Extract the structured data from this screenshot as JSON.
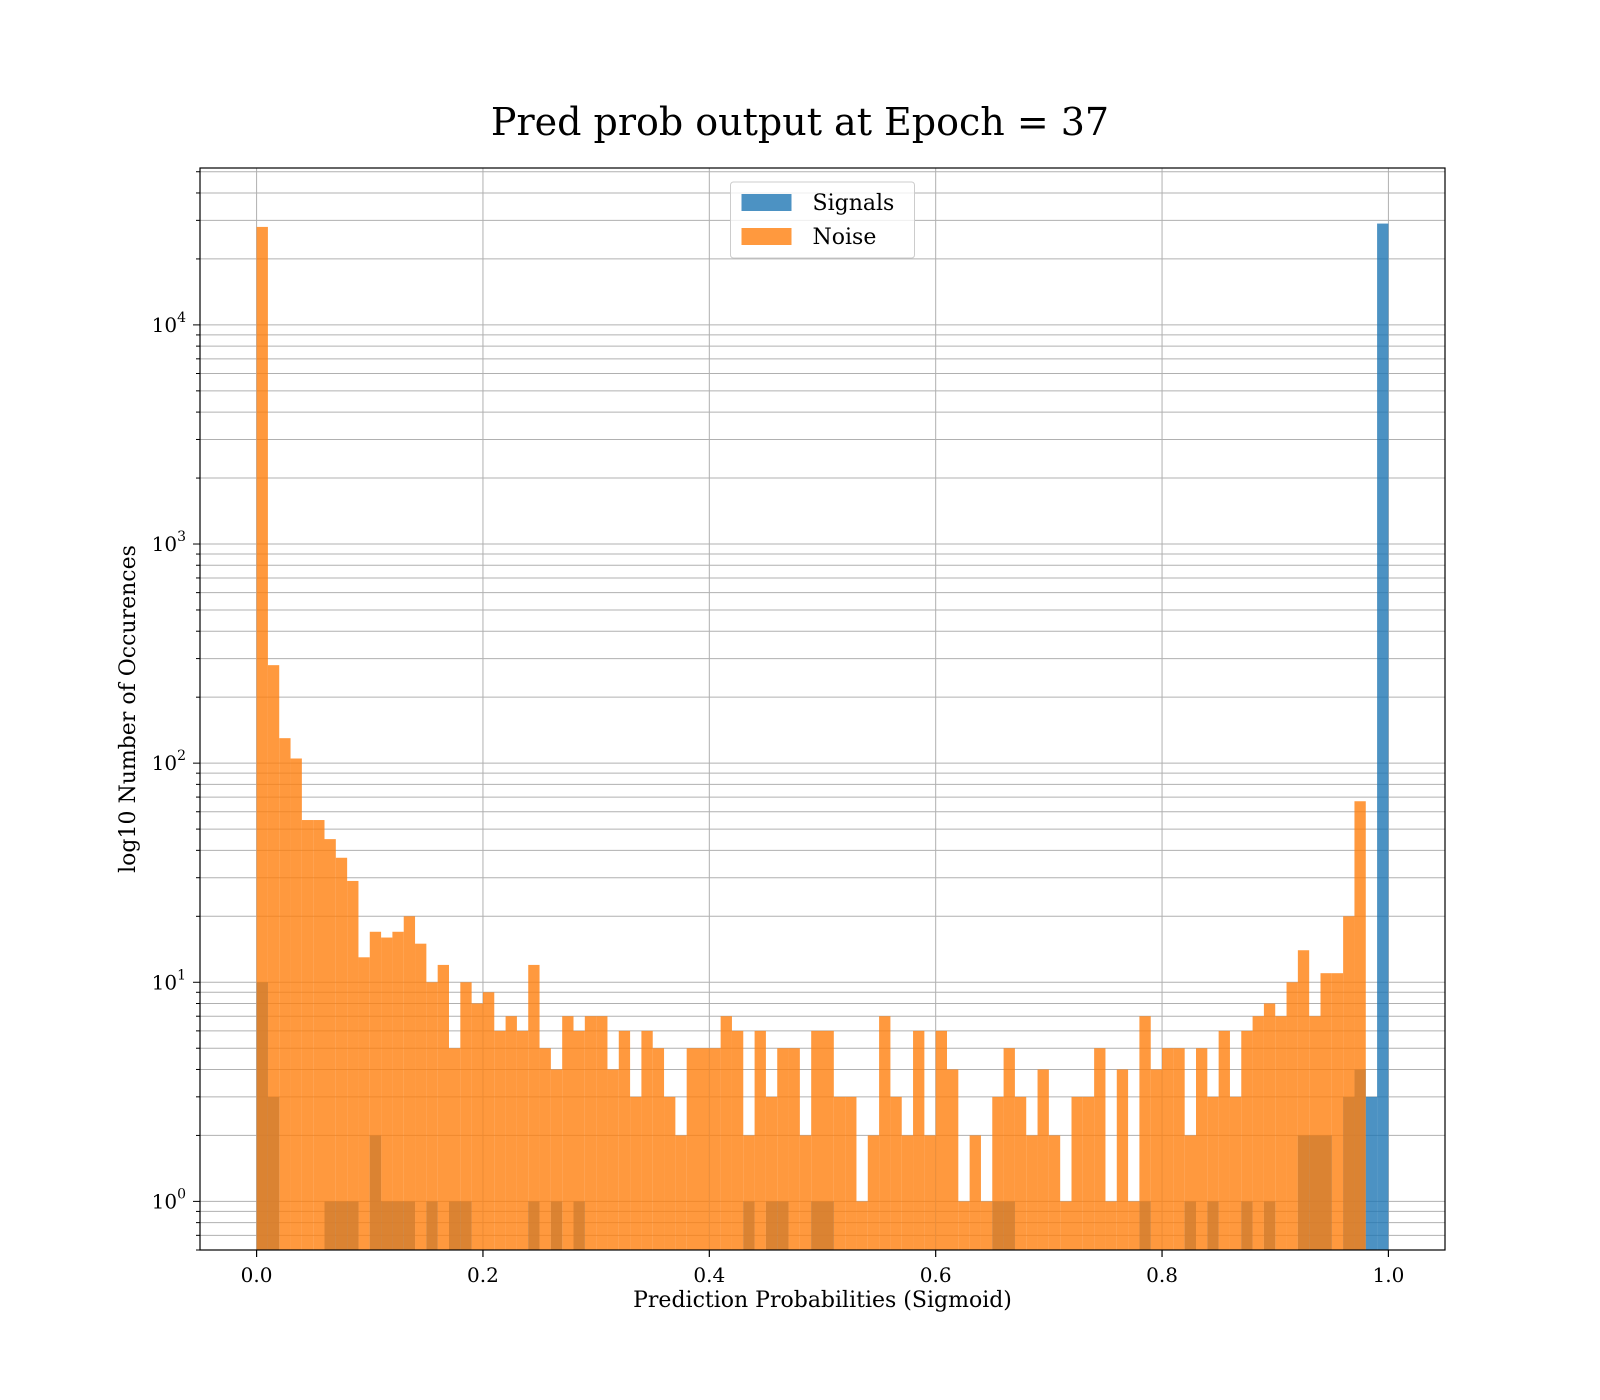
{
  "chart_data": {
    "type": "bar",
    "title": "Pred prob output at Epoch = 37",
    "xlabel": "Prediction Probabilities (Sigmoid)",
    "ylabel": "log10 Number of Occurences",
    "x_scale": "linear",
    "y_scale": "log",
    "xlim": [
      -0.05,
      1.05
    ],
    "ylim": [
      0.6,
      52000
    ],
    "x_ticks": [
      0.0,
      0.2,
      0.4,
      0.6,
      0.8,
      1.0
    ],
    "x_tick_labels": [
      "0.0",
      "0.2",
      "0.4",
      "0.6",
      "0.8",
      "1.0"
    ],
    "y_ticks": [
      1,
      10,
      100,
      1000,
      10000
    ],
    "y_tick_labels": [
      {
        "base": "10",
        "exp": "0"
      },
      {
        "base": "10",
        "exp": "1"
      },
      {
        "base": "10",
        "exp": "2"
      },
      {
        "base": "10",
        "exp": "3"
      },
      {
        "base": "10",
        "exp": "4"
      }
    ],
    "grid": true,
    "legend_position": "upper-center",
    "bins": 100,
    "bin_range": [
      0.0,
      1.0
    ],
    "series": [
      {
        "name": "Signals",
        "color": "#1f77b4",
        "values": [
          10,
          3,
          0,
          0,
          0,
          0,
          1,
          1,
          1,
          0,
          2,
          1,
          1,
          1,
          0,
          1,
          0,
          1,
          1,
          0,
          0,
          0,
          0,
          0,
          1,
          0,
          1,
          0,
          1,
          0,
          0,
          0,
          0,
          0,
          0,
          0,
          0,
          0,
          0,
          0,
          0,
          0,
          0,
          1,
          0,
          1,
          1,
          0,
          0,
          1,
          1,
          0,
          0,
          0,
          0,
          0,
          0,
          0,
          0,
          0,
          0,
          0,
          0,
          0,
          0,
          1,
          1,
          0,
          0,
          0,
          0,
          0,
          0,
          0,
          0,
          0,
          0,
          0,
          1,
          0,
          0,
          0,
          1,
          0,
          1,
          0,
          0,
          1,
          0,
          1,
          0,
          0,
          2,
          2,
          2,
          0,
          3,
          4,
          3,
          29000
        ]
      },
      {
        "name": "Noise",
        "color": "#ff7f0e",
        "values": [
          28000,
          280,
          130,
          105,
          55,
          55,
          45,
          37,
          29,
          13,
          17,
          16,
          17,
          20,
          15,
          10,
          12,
          5,
          10,
          8,
          9,
          6,
          7,
          6,
          12,
          5,
          4,
          7,
          6,
          7,
          7,
          4,
          6,
          3,
          6,
          5,
          3,
          2,
          5,
          5,
          5,
          7,
          6,
          2,
          6,
          3,
          5,
          5,
          2,
          6,
          6,
          3,
          3,
          1,
          2,
          7,
          3,
          2,
          6,
          2,
          6,
          4,
          1,
          2,
          1,
          3,
          5,
          3,
          2,
          4,
          2,
          1,
          3,
          3,
          5,
          1,
          4,
          1,
          7,
          4,
          5,
          5,
          2,
          5,
          3,
          6,
          3,
          6,
          7,
          8,
          7,
          10,
          14,
          7,
          11,
          11,
          20,
          67,
          0,
          0
        ]
      }
    ]
  }
}
